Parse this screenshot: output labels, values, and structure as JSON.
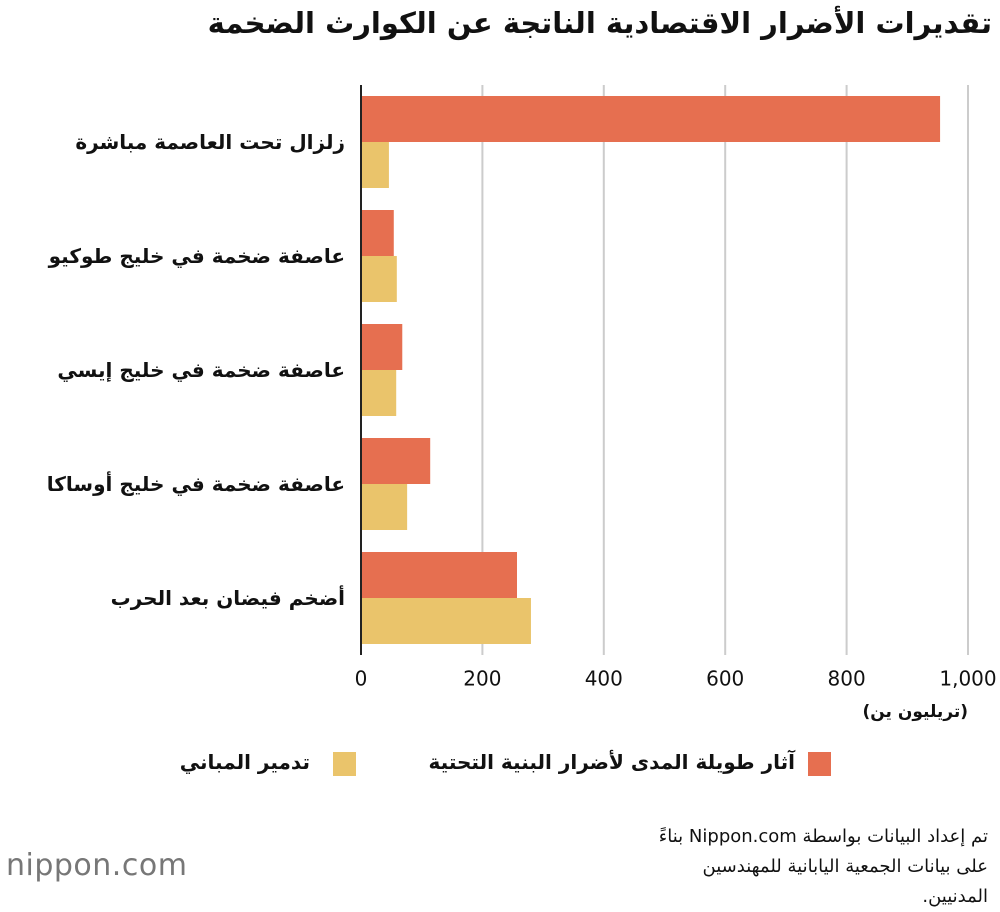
{
  "chart_data": {
    "type": "bar",
    "orientation": "horizontal",
    "title": "تقديرات الأضرار الاقتصادية الناتجة عن الكوارث الضخمة",
    "categories": [
      "زلزال تحت العاصمة مباشرة",
      "عاصفة ضخمة في خليج طوكيو",
      "عاصفة ضخمة في خليج إيسي",
      "عاصفة ضخمة في خليج أوساكا",
      "أضخم فيضان بعد الحرب"
    ],
    "series": [
      {
        "name": "آثار طويلة المدى لأضرار البنية التحتية",
        "color": "#e66f50",
        "values": [
          954,
          54,
          68,
          114,
          257
        ]
      },
      {
        "name": "تدمير المباني",
        "color": "#eac46b",
        "values": [
          46,
          59,
          58,
          76,
          280
        ]
      }
    ],
    "xlim": [
      0,
      1000
    ],
    "xticks": [
      0,
      200,
      400,
      600,
      800,
      {
        "value": 1000,
        "label": "1,000"
      }
    ],
    "x_axis_label": "(تريليون ين)",
    "grid": true,
    "legend": "bottom",
    "source": "تم إعداد البيانات بواسطة Nippon.com بناءً على بيانات الجمعية اليابانية للمهندسين المدنيين.",
    "logo": "nippon.com"
  }
}
